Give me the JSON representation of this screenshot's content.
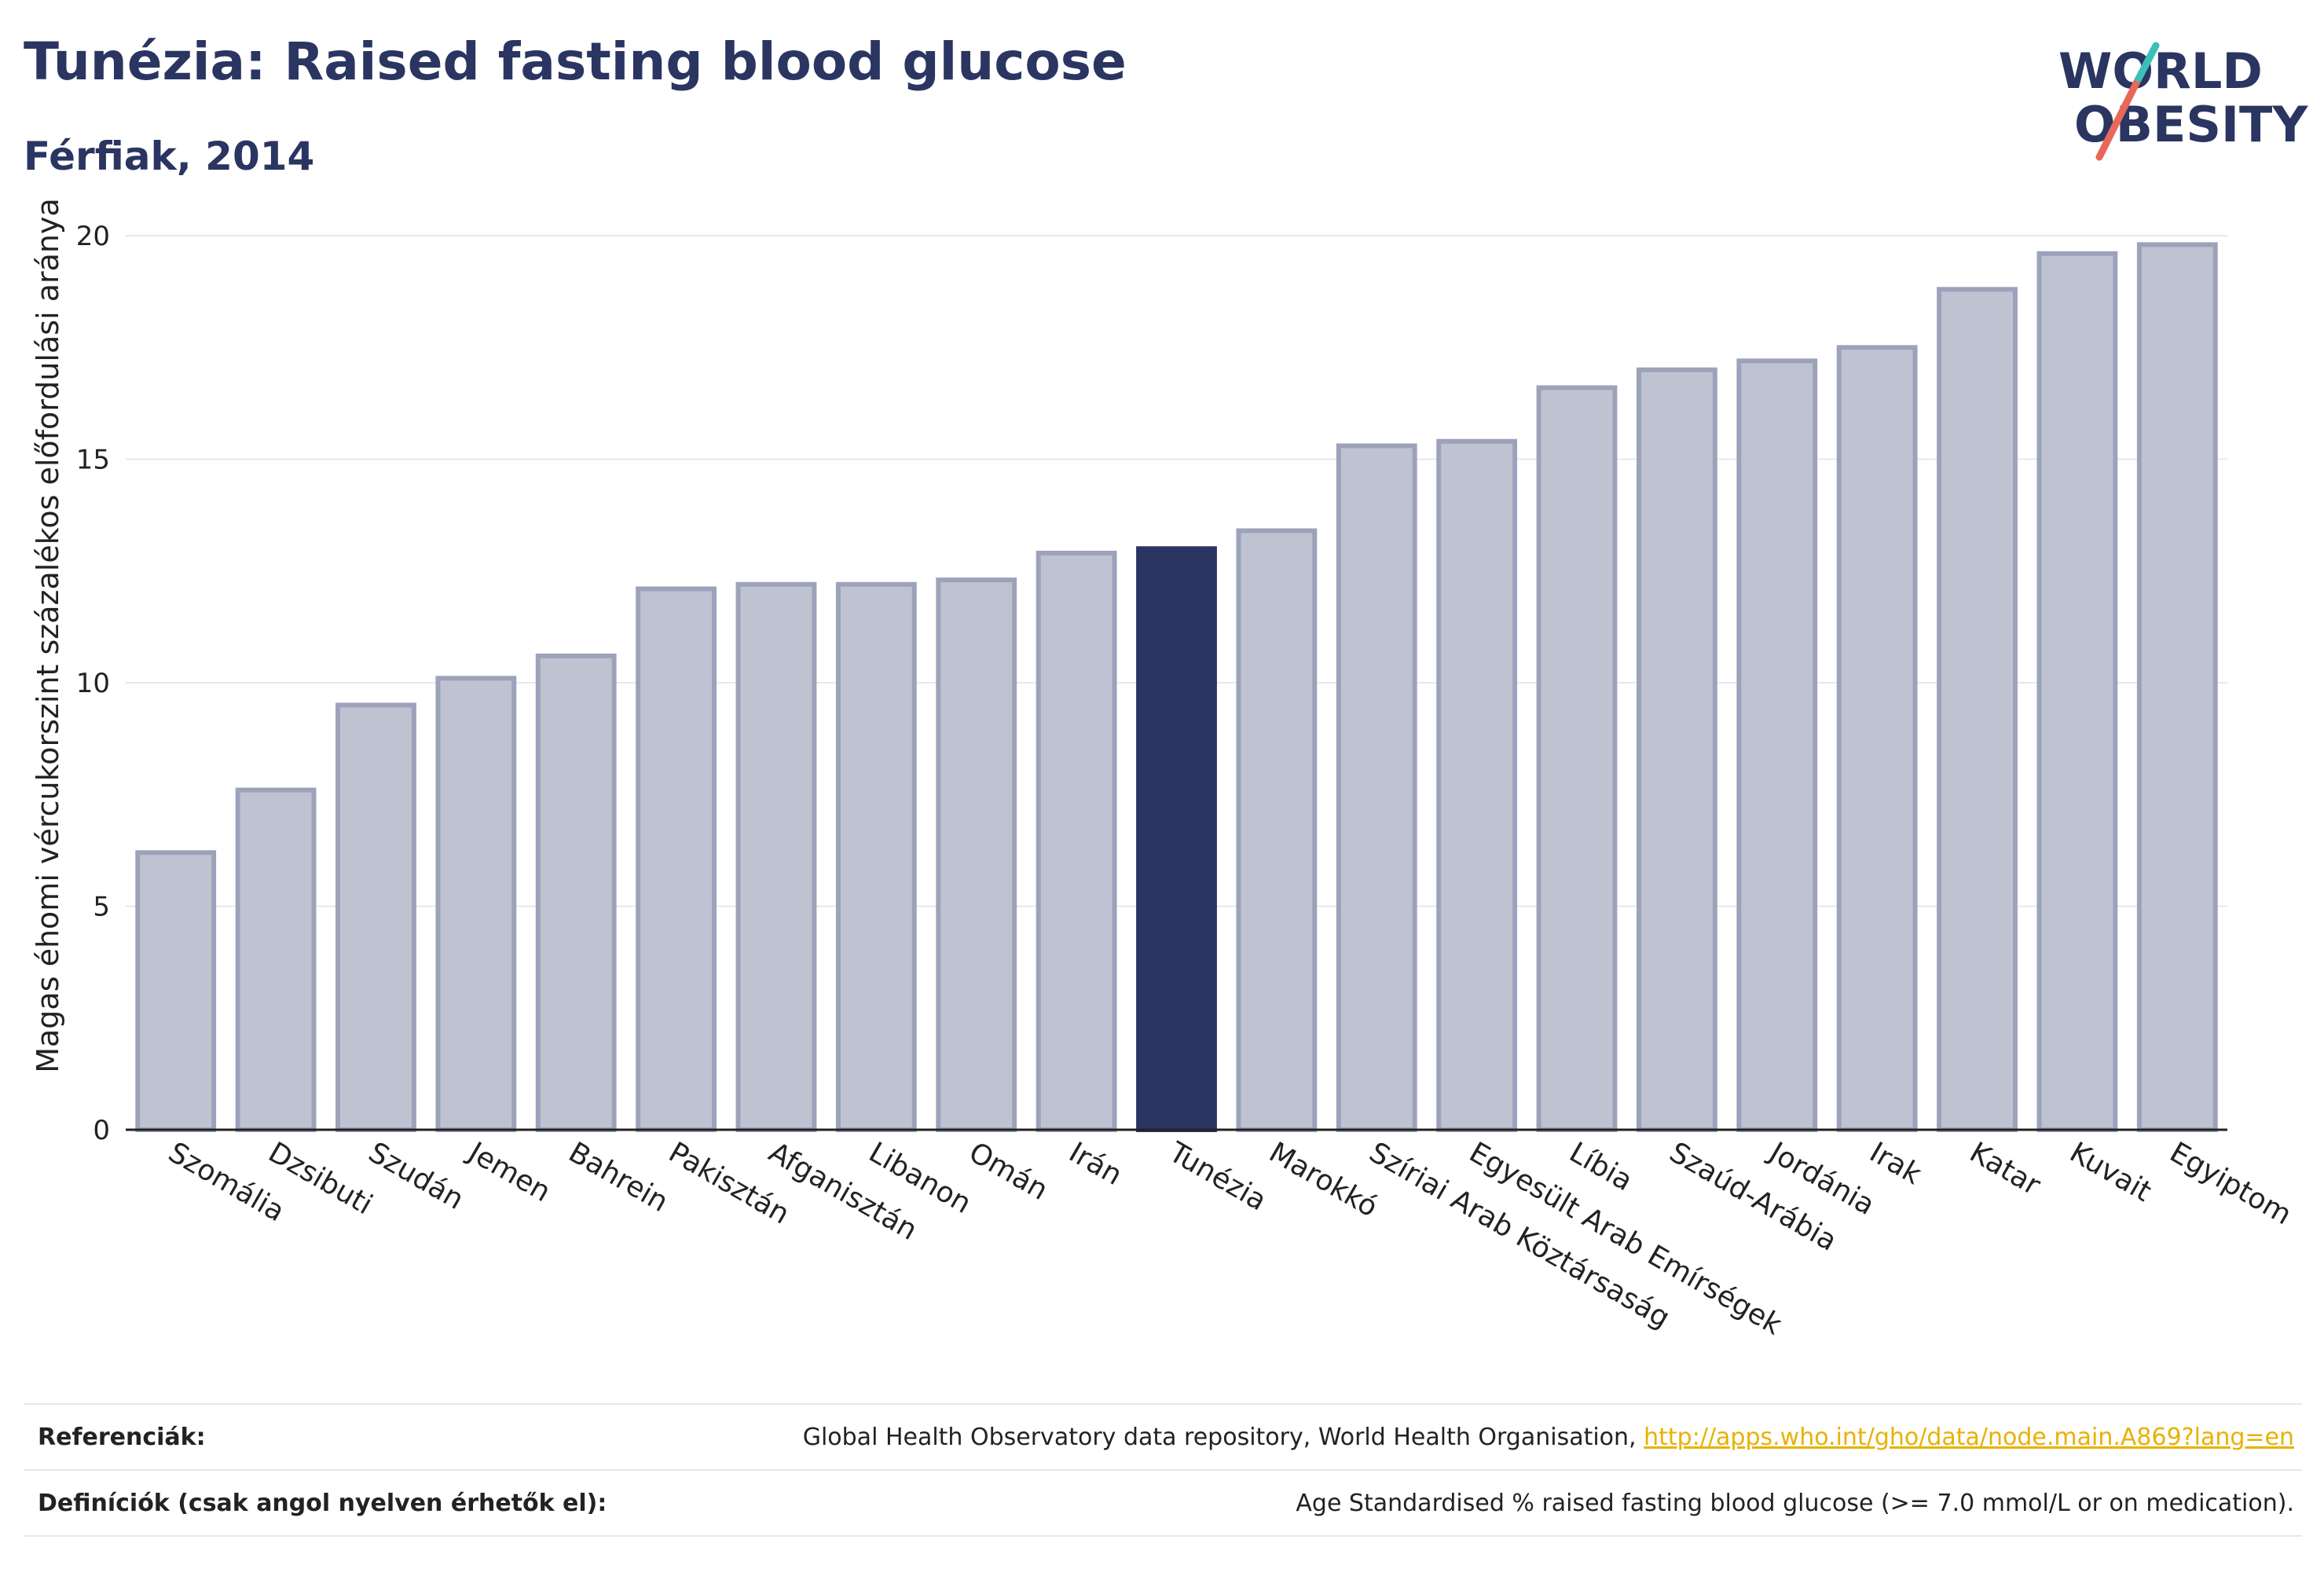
{
  "header": {
    "title": "Tunézia: Raised fasting blood glucose",
    "subtitle": "Férfiak, 2014"
  },
  "logo": {
    "line1": "WORLD",
    "line2": "OBESITY",
    "icon": "world-obesity-logo",
    "colors": {
      "text": "#2a3561",
      "slash_red": "#e8685a",
      "slash_teal": "#3bbfb7"
    }
  },
  "chart_data": {
    "type": "bar",
    "title": "Tunézia: Raised fasting blood glucose",
    "subtitle": "Férfiak, 2014",
    "xlabel": "",
    "ylabel": "Magas éhomi vércukorszint százalékos előfordulási aránya",
    "ylim": [
      0,
      20
    ],
    "yticks": [
      0,
      5,
      10,
      15,
      20
    ],
    "grid": true,
    "highlight": "Tunézia",
    "colors": {
      "bar": "#bfc3d1",
      "bar_edge": "#9ca2ba",
      "highlight": "#2a3561"
    },
    "categories": [
      "Szomália",
      "Dzsibuti",
      "Szudán",
      "Jemen",
      "Bahrein",
      "Pakisztán",
      "Afganisztán",
      "Libanon",
      "Omán",
      "Irán",
      "Tunézia",
      "Marokkó",
      "Szíriai Arab Köztársaság",
      "Egyesült Arab Emírségek",
      "Líbia",
      "Szaúd-Arábia",
      "Jordánia",
      "Irak",
      "Katar",
      "Kuvait",
      "Egyiptom"
    ],
    "values": [
      6.2,
      7.6,
      9.5,
      10.1,
      10.6,
      12.1,
      12.2,
      12.2,
      12.3,
      12.9,
      13.0,
      13.4,
      15.3,
      15.4,
      16.6,
      17.0,
      17.2,
      17.5,
      18.8,
      19.6,
      19.8
    ]
  },
  "footer": {
    "references_label": "Referenciák:",
    "references_text": "Global Health Observatory data repository, World Health Organisation,",
    "references_link": "http://apps.who.int/gho/data/node.main.A869?lang=en",
    "definitions_label": "Definíciók (csak angol nyelven érhetők el):",
    "definitions_text": "Age Standardised % raised fasting blood glucose (>= 7.0 mmol/L or on medication)."
  }
}
